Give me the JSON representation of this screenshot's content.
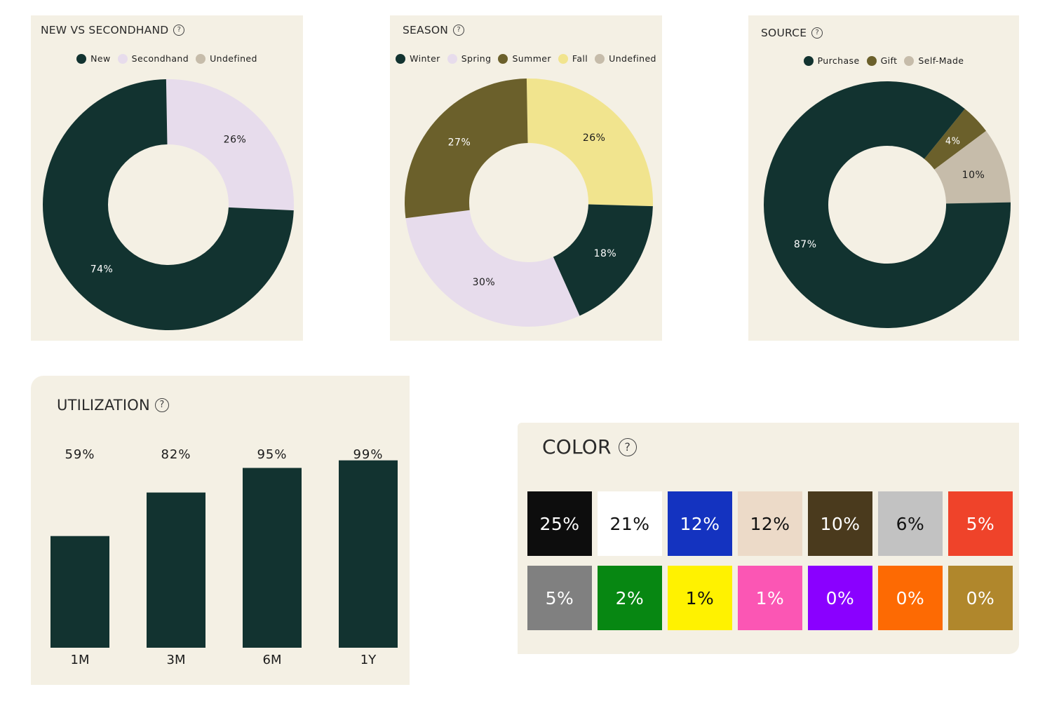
{
  "cards": {
    "new_vs_secondhand": {
      "title": "NEW VS SECONDHAND",
      "help_icon": "question-circle-icon",
      "legend": [
        {
          "label": "New",
          "color": "#123330"
        },
        {
          "label": "Secondhand",
          "color": "#e7dcec"
        },
        {
          "label": "Undefined",
          "color": "#c6bcaa"
        }
      ]
    },
    "season": {
      "title": "SEASON",
      "help_icon": "question-circle-icon",
      "legend": [
        {
          "label": "Winter",
          "color": "#123330"
        },
        {
          "label": "Spring",
          "color": "#e7dcec"
        },
        {
          "label": "Summer",
          "color": "#6b602b"
        },
        {
          "label": "Fall",
          "color": "#f1e48e"
        },
        {
          "label": "Undefined",
          "color": "#c6bcaa"
        }
      ]
    },
    "source": {
      "title": "SOURCE",
      "help_icon": "question-circle-icon",
      "legend": [
        {
          "label": "Purchase",
          "color": "#123330"
        },
        {
          "label": "Gift",
          "color": "#6b602b"
        },
        {
          "label": "Self-Made",
          "color": "#c6bcaa"
        }
      ]
    },
    "utilization": {
      "title": "UTILIZATION",
      "help_icon": "question-circle-icon"
    },
    "color": {
      "title": "COLOR",
      "help_icon": "question-circle-icon"
    }
  },
  "chart_data": [
    {
      "type": "pie",
      "title": "NEW VS SECONDHAND",
      "donut": true,
      "slices": [
        {
          "label": "Secondhand",
          "value": 26,
          "display": "26%",
          "color": "#e7dcec"
        },
        {
          "label": "New",
          "value": 74,
          "display": "74%",
          "color": "#123330"
        }
      ]
    },
    {
      "type": "pie",
      "title": "SEASON",
      "donut": true,
      "slices": [
        {
          "label": "Fall",
          "value": 26,
          "display": "26%",
          "color": "#f1e48e"
        },
        {
          "label": "Winter",
          "value": 18,
          "display": "18%",
          "color": "#123330"
        },
        {
          "label": "Spring",
          "value": 30,
          "display": "30%",
          "color": "#e7dcec"
        },
        {
          "label": "Summer",
          "value": 27,
          "display": "27%",
          "color": "#6b602b"
        }
      ]
    },
    {
      "type": "pie",
      "title": "SOURCE",
      "donut": true,
      "slices": [
        {
          "label": "Gift",
          "value": 4,
          "display": "4%",
          "color": "#6b602b"
        },
        {
          "label": "Self-Made",
          "value": 10,
          "display": "10%",
          "color": "#c6bcaa"
        },
        {
          "label": "Purchase",
          "value": 87,
          "display": "87%",
          "color": "#123330"
        }
      ]
    },
    {
      "type": "bar",
      "title": "UTILIZATION",
      "categories": [
        "1M",
        "3M",
        "6M",
        "1Y"
      ],
      "values": [
        59,
        82,
        95,
        99
      ],
      "value_labels": [
        "59%",
        "82%",
        "95%",
        "99%"
      ],
      "ylim": [
        0,
        100
      ],
      "bar_color": "#123330"
    },
    {
      "type": "table",
      "title": "COLOR",
      "cells": [
        {
          "value": 25,
          "label": "25%",
          "bg": "#0d0d0d",
          "fg": "#ffffff"
        },
        {
          "value": 21,
          "label": "21%",
          "bg": "#ffffff",
          "fg": "#111111"
        },
        {
          "value": 12,
          "label": "12%",
          "bg": "#1433c0",
          "fg": "#ffffff"
        },
        {
          "value": 12,
          "label": "12%",
          "bg": "#ecdac8",
          "fg": "#111111"
        },
        {
          "value": 10,
          "label": "10%",
          "bg": "#4a3a1d",
          "fg": "#ffffff"
        },
        {
          "value": 6,
          "label": "6%",
          "bg": "#c2c2c2",
          "fg": "#111111"
        },
        {
          "value": 5,
          "label": "5%",
          "bg": "#ef432a",
          "fg": "#ffffff"
        },
        {
          "value": 5,
          "label": "5%",
          "bg": "#808080",
          "fg": "#ffffff"
        },
        {
          "value": 2,
          "label": "2%",
          "bg": "#078712",
          "fg": "#ffffff"
        },
        {
          "value": 1,
          "label": "1%",
          "bg": "#fff200",
          "fg": "#111111"
        },
        {
          "value": 1,
          "label": "1%",
          "bg": "#fb56b4",
          "fg": "#ffffff"
        },
        {
          "value": 0,
          "label": "0%",
          "bg": "#8a00ff",
          "fg": "#ffffff"
        },
        {
          "value": 0,
          "label": "0%",
          "bg": "#fd6a03",
          "fg": "#ffffff"
        },
        {
          "value": 0,
          "label": "0%",
          "bg": "#b0872c",
          "fg": "#ffffff"
        }
      ]
    }
  ]
}
